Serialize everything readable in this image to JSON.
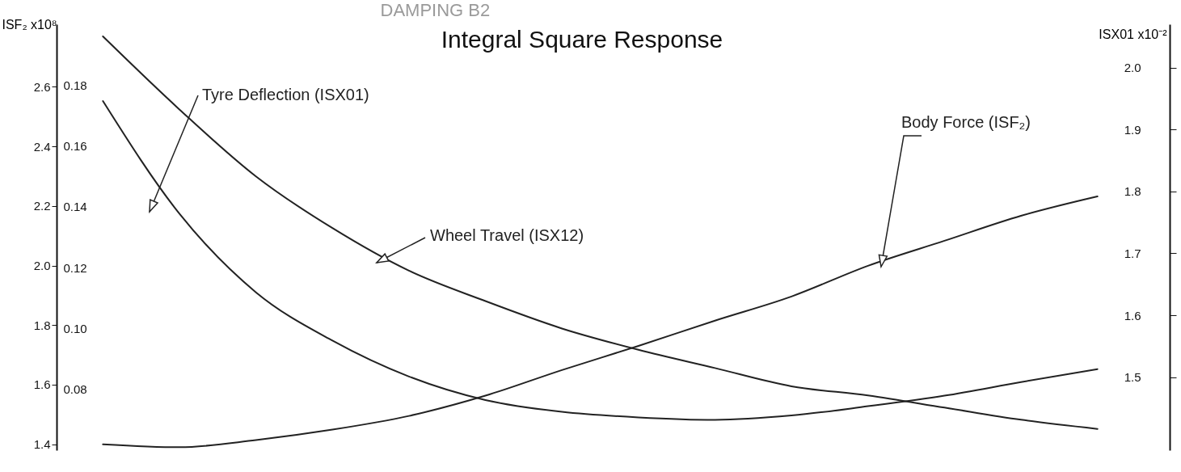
{
  "chart_data": {
    "type": "line",
    "title": "Integral Square Response",
    "xlabel": "DAMPING B2",
    "ylabel": "ISF₂ x10⁸",
    "y3label": "ISX01 x10⁻²",
    "categories": [
      null,
      null,
      null,
      null,
      null,
      null,
      null,
      null,
      null,
      null,
      null,
      null,
      null,
      null
    ],
    "series": [
      {
        "name": "Tyre Deflection (ISX01)",
        "color": "#222222",
        "axis": "y3",
        "values": [
          1.946,
          1.764,
          1.637,
          1.559,
          1.501,
          1.463,
          1.444,
          1.435,
          1.431,
          1.438,
          1.453,
          1.47,
          1.492,
          1.513
        ]
      },
      {
        "name": "Wheel Travel (ISX12)",
        "color": "#222222",
        "axis": "y2",
        "values": [
          0.196,
          0.172,
          0.15,
          0.133,
          0.119,
          0.109,
          0.1,
          0.093,
          0.087,
          0.081,
          0.078,
          0.074,
          0.07,
          0.067
        ]
      },
      {
        "name": "Body Force (ISF₂)",
        "color": "#222222",
        "values": [
          1.4,
          1.39,
          1.414,
          1.449,
          1.495,
          1.563,
          1.649,
          1.73,
          1.815,
          1.896,
          1.999,
          2.083,
          2.167,
          2.232
        ]
      }
    ],
    "ylim": [
      1.38,
      2.81
    ],
    "yticks": [
      1.4,
      1.6,
      1.8,
      {
        "value": 2,
        "label": "2.0"
      },
      2.2,
      2.4,
      2.6
    ],
    "y2lim": [
      0.06,
      0.2
    ],
    "y2ticks": [
      0.08,
      {
        "value": 0.1,
        "label": "0.10"
      },
      0.12,
      0.14,
      0.16,
      0.18
    ],
    "y3lim": [
      1.382,
      2.07
    ],
    "y3ticks": [
      1.5,
      1.6,
      1.7,
      1.8,
      1.9,
      {
        "value": 2,
        "label": "2.0"
      }
    ],
    "grid": false,
    "legend": false,
    "marker": "none",
    "line_style": "solid"
  }
}
